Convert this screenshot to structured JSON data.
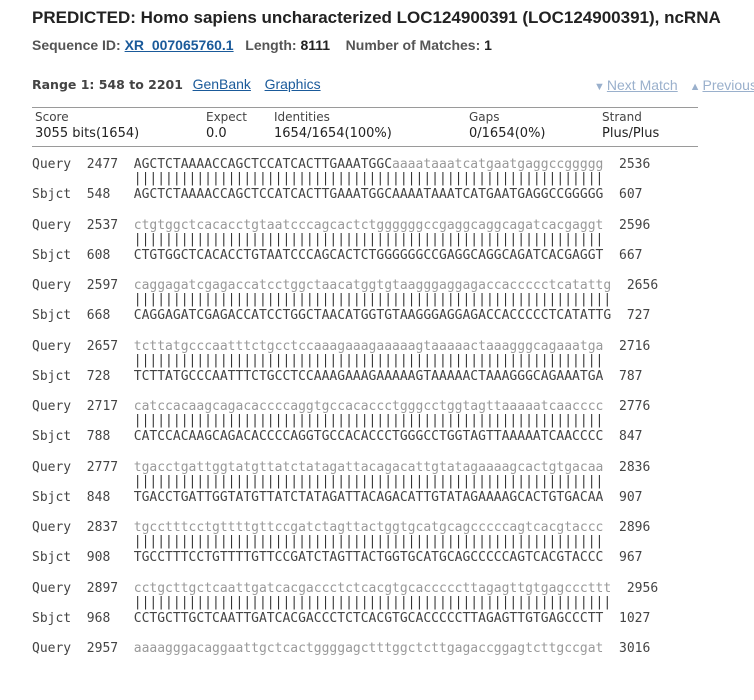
{
  "title": "PREDICTED: Homo sapiens uncharacterized LOC124900391 (LOC124900391), ncRNA",
  "meta": {
    "seq_id_label": "Sequence ID:",
    "seq_id": "XR_007065760.1",
    "length_label": "Length:",
    "length": "8111",
    "matches_label": "Number of Matches:",
    "matches": "1"
  },
  "range": {
    "label": "Range 1: 548 to 2201",
    "genbank": "GenBank",
    "graphics": "Graphics",
    "next": "Next Match",
    "previous": "Previous"
  },
  "stats": {
    "score_h": "Score",
    "score": "3055 bits(1654)",
    "expect_h": "Expect",
    "expect": "0.0",
    "ident_h": "Identities",
    "ident": "1654/1654(100%)",
    "gaps_h": "Gaps",
    "gaps": "0/1654(0%)",
    "strand_h": "Strand",
    "strand": "Plus/Plus"
  },
  "alignment": [
    {
      "qs": "2477",
      "q_upper": "AGCTCTAAAACCAGCTCCATCACTTGAAATGGC",
      "q_lower": "aaaataaatcatgaatgaggccggggg",
      "qe": "2536",
      "ss": "548",
      "sbjct": "AGCTCTAAAACCAGCTCCATCACTTGAAATGGCAAAATAAATCATGAATGAGGCCGGGGG",
      "se": "607"
    },
    {
      "qs": "2537",
      "q_upper": "",
      "q_lower": "ctgtggctcacacctgtaatcccagcactctggggggccgaggcaggcagatcacgaggt",
      "qe": "2596",
      "ss": "608",
      "sbjct": "CTGTGGCTCACACCTGTAATCCCAGCACTCTGGGGGGCCGAGGCAGGCAGATCACGAGGT",
      "se": "667"
    },
    {
      "qs": "2597",
      "q_upper": "",
      "q_lower": "caggagatcgagaccatcctggctaacatggtgtaagggaggagaccaccccctcatattg",
      "qe": "2656",
      "ss": "668",
      "sbjct": "CAGGAGATCGAGACCATCCTGGCTAACATGGTGTAAGGGAGGAGACCACCCCCTCATATTG",
      "se": "727"
    },
    {
      "qs": "2657",
      "q_upper": "",
      "q_lower": "tcttatgcccaatttctgcctccaaagaaagaaaaagtaaaaactaaagggcagaaatga",
      "qe": "2716",
      "ss": "728",
      "sbjct": "TCTTATGCCCAATTTCTGCCTCCAAAGAAAGAAAAAGTAAAAACTAAAGGGCAGAAATGA",
      "se": "787"
    },
    {
      "qs": "2717",
      "q_upper": "",
      "q_lower": "catccacaagcagacaccccaggtgccacaccctgggcctggtagttaaaaatcaacccc",
      "qe": "2776",
      "ss": "788",
      "sbjct": "CATCCACAAGCAGACACCCCAGGTGCCACACCCTGGGCCTGGTAGTTAAAAATCAACCCC",
      "se": "847"
    },
    {
      "qs": "2777",
      "q_upper": "",
      "q_lower": "tgacctgattggtatgttatctatagattacagacattgtatagaaaagcactgtgacaa",
      "qe": "2836",
      "ss": "848",
      "sbjct": "TGACCTGATTGGTATGTTATCTATAGATTACAGACATTGTATAGAAAAGCACTGTGACAA",
      "se": "907"
    },
    {
      "qs": "2837",
      "q_upper": "",
      "q_lower": "tgcctttcctgttttgttccgatctagttactggtgcatgcagcccccagtcacgtaccc",
      "qe": "2896",
      "ss": "908",
      "sbjct": "TGCCTTTCCTGTTTTGTTCCGATCTAGTTACTGGTGCATGCAGCCCCCAGTCACGTACCC",
      "se": "967"
    },
    {
      "qs": "2897",
      "q_upper": "",
      "q_lower": "cctgcttgctcaattgatcacgaccctctcacgtgcacccccttagagttgtgagcccttt",
      "qe": "2956",
      "ss": "968",
      "sbjct": "CCTGCTTGCTCAATTGATCACGACCCTCTCACGTGCACCCCCTTAGAGTTGTGAGCCCTT",
      "se": "1027"
    },
    {
      "qs": "2957",
      "q_upper": "",
      "q_lower": "aaaagggacaggaattgctcactggggagctttggctcttgagaccggagtcttgccgat",
      "qe": "3016",
      "ss": "",
      "sbjct": "",
      "se": ""
    }
  ],
  "row_labels": {
    "query": "Query",
    "sbjct": "Sbjct"
  }
}
